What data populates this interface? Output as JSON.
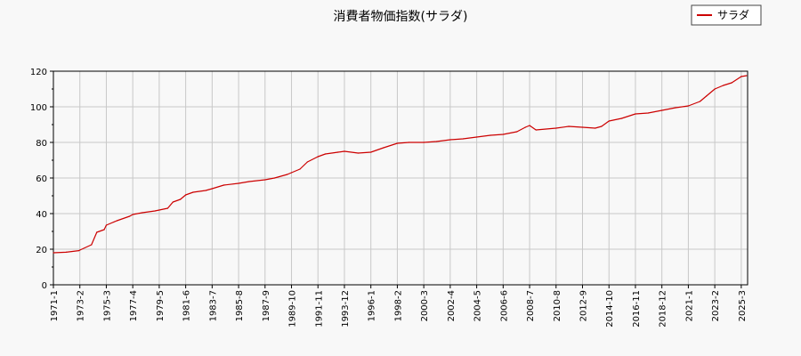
{
  "chart_data": {
    "type": "line",
    "title": "消費者物価指数(サラダ)",
    "xlabel": "",
    "ylabel": "",
    "ylim": [
      0,
      120
    ],
    "yticks": [
      0,
      20,
      40,
      60,
      80,
      100,
      120
    ],
    "grid": true,
    "legend_position": "top-right",
    "x_tick_labels": [
      "1971-1",
      "1973-2",
      "1975-3",
      "1977-4",
      "1979-5",
      "1981-6",
      "1983-7",
      "1985-8",
      "1987-9",
      "1989-10",
      "1991-11",
      "1993-12",
      "1996-1",
      "1998-2",
      "2000-3",
      "2002-4",
      "2004-5",
      "2006-6",
      "2008-7",
      "2010-8",
      "2012-9",
      "2014-10",
      "2016-11",
      "2018-12",
      "2021-1",
      "2023-2",
      "2025-3"
    ],
    "series": [
      {
        "name": "サラダ",
        "color": "#cc0000",
        "points": [
          [
            "1971-1",
            18.0
          ],
          [
            "1972-1",
            18.3
          ],
          [
            "1973-1",
            19.2
          ],
          [
            "1973-2",
            19.5
          ],
          [
            "1974-1",
            22.5
          ],
          [
            "1974-6",
            29.5
          ],
          [
            "1975-1",
            31.0
          ],
          [
            "1975-3",
            33.5
          ],
          [
            "1976-1",
            36.0
          ],
          [
            "1977-1",
            38.5
          ],
          [
            "1977-4",
            39.5
          ],
          [
            "1978-1",
            40.5
          ],
          [
            "1979-1",
            41.5
          ],
          [
            "1979-5",
            42.0
          ],
          [
            "1980-1",
            43.0
          ],
          [
            "1980-6",
            46.5
          ],
          [
            "1981-1",
            48.0
          ],
          [
            "1981-6",
            50.5
          ],
          [
            "1982-1",
            52.0
          ],
          [
            "1983-1",
            53.0
          ],
          [
            "1983-7",
            54.0
          ],
          [
            "1984-6",
            56.0
          ],
          [
            "1985-8",
            57.0
          ],
          [
            "1986-6",
            58.0
          ],
          [
            "1987-9",
            59.0
          ],
          [
            "1988-6",
            60.0
          ],
          [
            "1989-6",
            62.0
          ],
          [
            "1989-10",
            63.0
          ],
          [
            "1990-6",
            65.0
          ],
          [
            "1991-1",
            69.0
          ],
          [
            "1991-11",
            72.0
          ],
          [
            "1992-6",
            73.5
          ],
          [
            "1993-6",
            74.5
          ],
          [
            "1993-12",
            75.0
          ],
          [
            "1995-1",
            74.0
          ],
          [
            "1996-1",
            74.5
          ],
          [
            "1997-1",
            77.0
          ],
          [
            "1998-2",
            79.5
          ],
          [
            "1999-1",
            80.0
          ],
          [
            "2000-3",
            80.0
          ],
          [
            "2001-3",
            80.5
          ],
          [
            "2002-4",
            81.5
          ],
          [
            "2003-4",
            82.0
          ],
          [
            "2004-5",
            83.0
          ],
          [
            "2005-6",
            84.0
          ],
          [
            "2006-6",
            84.5
          ],
          [
            "2007-7",
            86.0
          ],
          [
            "2008-3",
            88.5
          ],
          [
            "2008-7",
            89.5
          ],
          [
            "2009-1",
            87.0
          ],
          [
            "2010-8",
            88.0
          ],
          [
            "2011-8",
            89.0
          ],
          [
            "2012-9",
            88.5
          ],
          [
            "2013-9",
            88.0
          ],
          [
            "2014-3",
            89.0
          ],
          [
            "2014-10",
            92.0
          ],
          [
            "2015-10",
            93.5
          ],
          [
            "2016-11",
            96.0
          ],
          [
            "2017-11",
            96.5
          ],
          [
            "2018-12",
            98.0
          ],
          [
            "2020-1",
            99.5
          ],
          [
            "2021-1",
            100.5
          ],
          [
            "2021-12",
            103.0
          ],
          [
            "2022-6",
            106.0
          ],
          [
            "2023-2",
            110.0
          ],
          [
            "2023-10",
            112.0
          ],
          [
            "2024-6",
            113.5
          ],
          [
            "2025-3",
            117.0
          ],
          [
            "2025-8",
            117.5
          ]
        ]
      }
    ]
  }
}
